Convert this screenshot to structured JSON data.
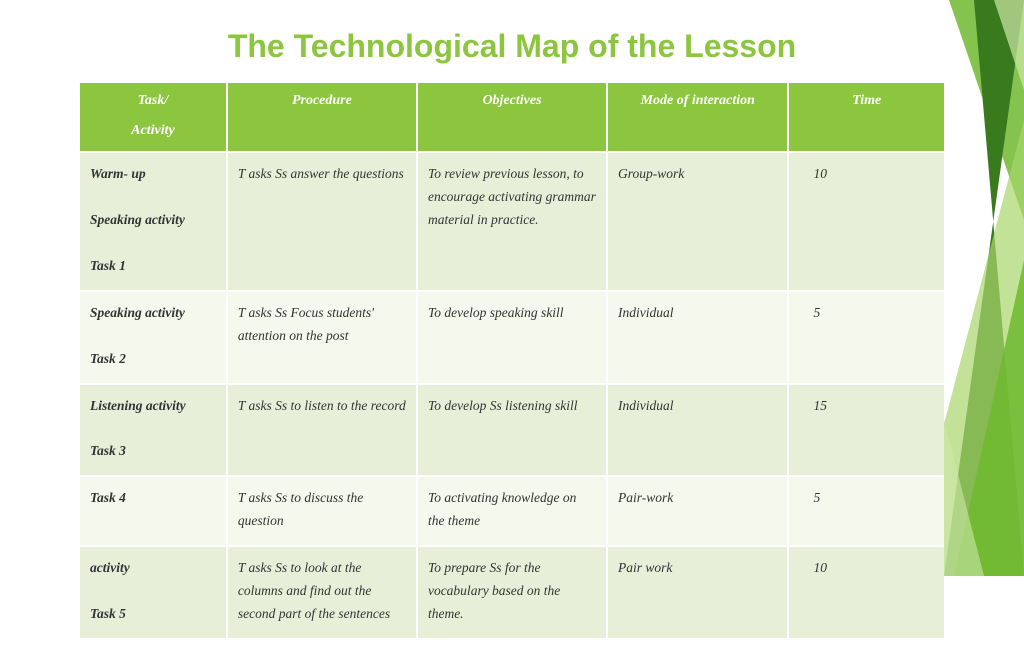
{
  "title": "The Technological Map of the Lesson",
  "title_color": "#8cc63f",
  "header_bg": "#8cc63f",
  "row_bg_odd": "#e8efd9",
  "row_bg_even": "#f4f8ed",
  "columns": {
    "activity_line1": "Task/",
    "activity_line2": "Activity",
    "procedure": "Procedure",
    "objectives": "Objectives",
    "mode": "Mode of interaction",
    "time": "Time"
  },
  "rows": [
    {
      "activity": "Warm- up\n\nSpeaking activity\n\nTask 1",
      "procedure": "T asks Ss answer the questions",
      "objectives": "To review previous lesson, to encourage activating grammar material in practice.",
      "mode": "Group-work",
      "time": "10"
    },
    {
      "activity": "Speaking activity\n\nTask 2",
      "procedure": "T asks Ss Focus students'  attention on  the  post",
      "objectives": "To develop speaking skill",
      "mode": " Individual",
      "time": "5"
    },
    {
      "activity": "Listening activity\n\nTask 3",
      "procedure": "T asks Ss to listen to the record",
      "objectives": "To develop Ss listening skill",
      "mode": "Individual",
      "time": "15"
    },
    {
      "activity": "Task 4",
      "procedure": "T asks Ss to discuss the question",
      "objectives": "To activating knowledge on the theme",
      "mode": "Pair-work",
      "time": "5"
    },
    {
      "activity": "activity\n\nTask 5",
      "procedure": "T asks Ss to look at the columns and find out  the second part of the sentences",
      "objectives": "To prepare Ss for the vocabulary based on the theme.",
      "mode": "Pair work",
      "time": "10"
    }
  ],
  "decor_colors": {
    "dark": "#3a7a1e",
    "mid": "#6eb82f",
    "light": "#a8d66b",
    "pale": "#cde8a8"
  }
}
